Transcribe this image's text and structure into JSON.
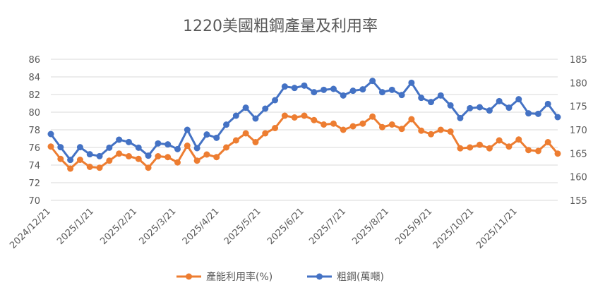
{
  "chart_data": {
    "type": "line",
    "title": "1220美國粗鋼產量及利用率",
    "x": [
      "2024/12/21",
      "2024/12/28",
      "2025/1/4",
      "2025/1/11",
      "2025/1/18",
      "2025/1/25",
      "2025/2/1",
      "2025/2/8",
      "2025/2/15",
      "2025/2/22",
      "2025/3/1",
      "2025/3/8",
      "2025/3/15",
      "2025/3/22",
      "2025/3/29",
      "2025/4/5",
      "2025/4/12",
      "2025/4/19",
      "2025/4/26",
      "2025/5/3",
      "2025/5/10",
      "2025/5/17",
      "2025/5/24",
      "2025/5/31",
      "2025/6/7",
      "2025/6/14",
      "2025/6/21",
      "2025/6/28",
      "2025/7/5",
      "2025/7/12",
      "2025/7/19",
      "2025/7/26",
      "2025/8/2",
      "2025/8/9",
      "2025/8/16",
      "2025/8/23",
      "2025/8/30",
      "2025/9/6",
      "2025/9/13",
      "2025/9/20",
      "2025/9/27",
      "2025/10/4",
      "2025/10/11",
      "2025/10/18",
      "2025/10/25",
      "2025/11/1",
      "2025/11/8",
      "2025/11/15",
      "2025/11/22",
      "2025/11/29",
      "2025/12/6",
      "2025/12/13",
      "2025/12/20"
    ],
    "x_tick_labels": [
      "2024/12/21",
      "2025/1/21",
      "2025/2/21",
      "2025/3/21",
      "2025/4/21",
      "2025/5/21",
      "2025/6/21",
      "2025/7/21",
      "2025/8/21",
      "2025/9/21",
      "2025/10/21",
      "2025/11/21"
    ],
    "x_tick_index": [
      0,
      4.43,
      8.86,
      12.86,
      17.29,
      21.57,
      26.0,
      30.29,
      34.71,
      39.14,
      43.43,
      47.86
    ],
    "y_left": {
      "min": 70,
      "max": 86,
      "ticks": [
        70,
        72,
        74,
        76,
        78,
        80,
        82,
        84,
        86
      ]
    },
    "y_right": {
      "min": 155,
      "max": 185,
      "ticks": [
        155,
        160,
        165,
        170,
        175,
        180,
        185
      ]
    },
    "series": [
      {
        "name": "產能利用率(%)",
        "axis": "left",
        "color": "#ED7D31",
        "values": [
          76.1,
          74.7,
          73.6,
          74.6,
          73.8,
          73.7,
          74.5,
          75.3,
          75.0,
          74.7,
          73.7,
          75.0,
          74.9,
          74.3,
          76.2,
          74.5,
          75.2,
          74.9,
          76.0,
          76.8,
          77.6,
          76.6,
          77.6,
          78.2,
          79.6,
          79.4,
          79.6,
          79.1,
          78.6,
          78.7,
          78.0,
          78.4,
          78.7,
          79.5,
          78.3,
          78.6,
          78.1,
          79.2,
          77.9,
          77.5,
          78.0,
          77.8,
          75.9,
          76.0,
          76.3,
          75.9,
          76.8,
          76.1,
          76.9,
          75.7,
          75.6,
          76.6,
          75.3
        ]
      },
      {
        "name": "粗鋼(萬噸)",
        "axis": "right",
        "color": "#4472C4",
        "values": [
          169.1,
          166.3,
          163.6,
          166.3,
          164.8,
          164.4,
          166.2,
          167.9,
          167.4,
          166.2,
          164.5,
          167.1,
          166.9,
          165.9,
          170.0,
          166.1,
          169.0,
          168.3,
          171.1,
          173.0,
          174.7,
          172.4,
          174.5,
          176.3,
          179.2,
          178.9,
          179.4,
          178.0,
          178.5,
          178.7,
          177.3,
          178.3,
          178.6,
          180.4,
          178.0,
          178.5,
          177.4,
          180.0,
          176.8,
          175.9,
          177.3,
          175.2,
          172.5,
          174.6,
          174.8,
          174.1,
          176.1,
          174.7,
          176.5,
          173.5,
          173.4,
          175.5,
          172.7
        ]
      }
    ],
    "legend": {
      "placement": "bottom",
      "items": [
        "產能利用率(%)",
        "粗鋼(萬噸)"
      ]
    },
    "grid": true
  }
}
